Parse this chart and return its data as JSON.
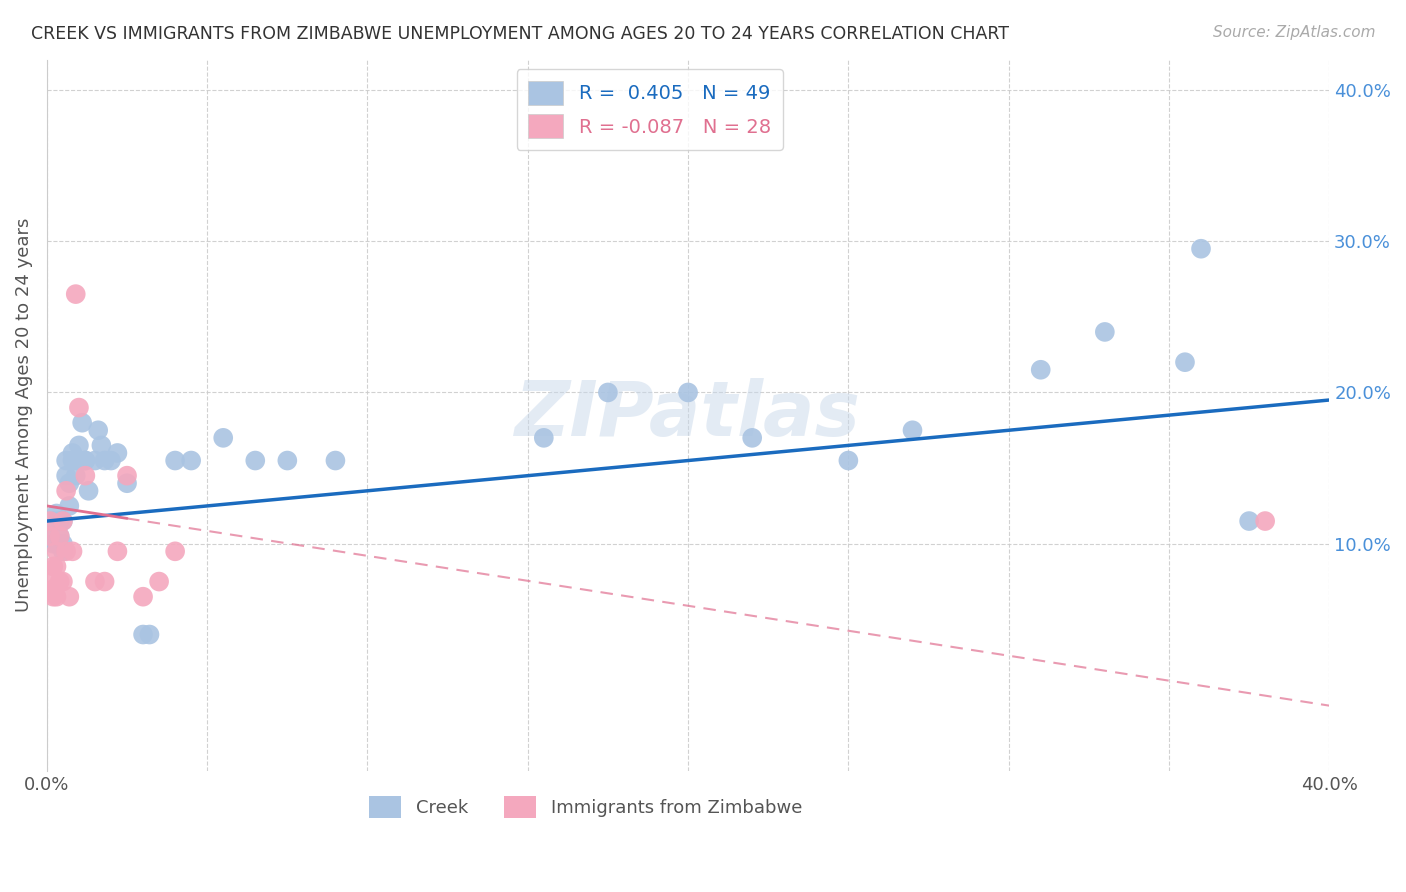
{
  "title": "CREEK VS IMMIGRANTS FROM ZIMBABWE UNEMPLOYMENT AMONG AGES 20 TO 24 YEARS CORRELATION CHART",
  "source": "Source: ZipAtlas.com",
  "ylabel": "Unemployment Among Ages 20 to 24 years",
  "xlim": [
    0.0,
    0.4
  ],
  "ylim": [
    -0.05,
    0.42
  ],
  "creek_color": "#aac4e2",
  "creek_line_color": "#1a6bbf",
  "zimb_color": "#f4a8be",
  "zimb_line_color": "#e07090",
  "R_creek": 0.405,
  "N_creek": 49,
  "R_zimb": -0.087,
  "N_zimb": 28,
  "watermark": "ZIPatlas",
  "creek_x": [
    0.001,
    0.002,
    0.002,
    0.003,
    0.003,
    0.004,
    0.004,
    0.005,
    0.005,
    0.005,
    0.006,
    0.006,
    0.007,
    0.007,
    0.008,
    0.008,
    0.009,
    0.01,
    0.01,
    0.011,
    0.012,
    0.012,
    0.013,
    0.015,
    0.016,
    0.017,
    0.018,
    0.02,
    0.022,
    0.025,
    0.03,
    0.032,
    0.04,
    0.045,
    0.055,
    0.065,
    0.075,
    0.09,
    0.155,
    0.175,
    0.2,
    0.22,
    0.25,
    0.27,
    0.31,
    0.33,
    0.355,
    0.36,
    0.375
  ],
  "creek_y": [
    0.105,
    0.115,
    0.1,
    0.12,
    0.1,
    0.115,
    0.105,
    0.115,
    0.1,
    0.095,
    0.145,
    0.155,
    0.14,
    0.125,
    0.155,
    0.16,
    0.145,
    0.165,
    0.155,
    0.18,
    0.155,
    0.155,
    0.135,
    0.155,
    0.175,
    0.165,
    0.155,
    0.155,
    0.16,
    0.14,
    0.04,
    0.04,
    0.155,
    0.155,
    0.17,
    0.155,
    0.155,
    0.155,
    0.17,
    0.2,
    0.2,
    0.17,
    0.155,
    0.175,
    0.215,
    0.24,
    0.22,
    0.295,
    0.115
  ],
  "zimb_x": [
    0.001,
    0.001,
    0.001,
    0.002,
    0.002,
    0.002,
    0.003,
    0.003,
    0.003,
    0.004,
    0.004,
    0.005,
    0.005,
    0.006,
    0.006,
    0.007,
    0.008,
    0.009,
    0.01,
    0.012,
    0.015,
    0.018,
    0.022,
    0.025,
    0.03,
    0.035,
    0.04,
    0.38
  ],
  "zimb_y": [
    0.115,
    0.105,
    0.075,
    0.085,
    0.07,
    0.065,
    0.095,
    0.085,
    0.065,
    0.105,
    0.075,
    0.115,
    0.075,
    0.135,
    0.095,
    0.065,
    0.095,
    0.265,
    0.19,
    0.145,
    0.075,
    0.075,
    0.095,
    0.145,
    0.065,
    0.075,
    0.095,
    0.115
  ]
}
